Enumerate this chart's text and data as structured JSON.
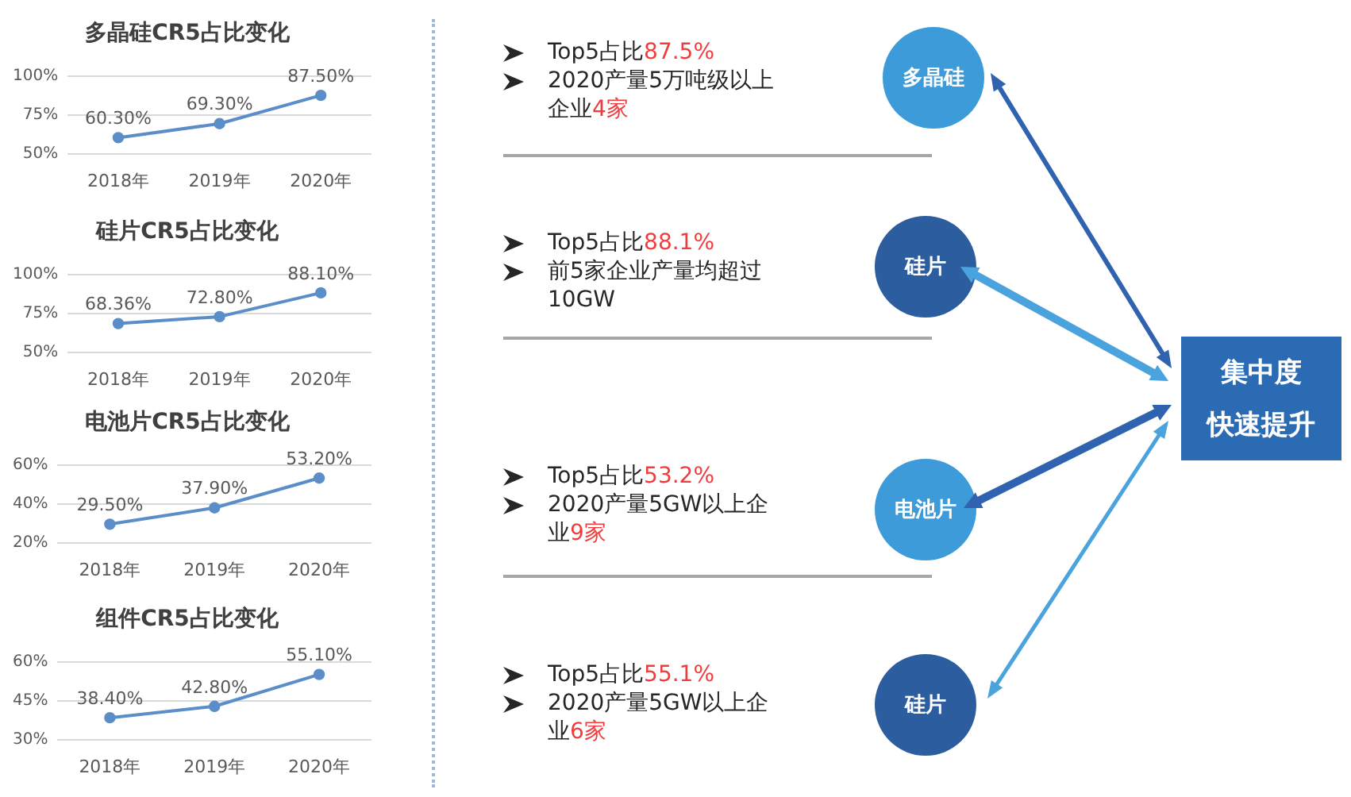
{
  "chart_data": [
    {
      "type": "line",
      "title": "多晶硅CR5占比变化",
      "categories": [
        "2018年",
        "2019年",
        "2020年"
      ],
      "values": [
        60.3,
        69.3,
        87.5
      ],
      "value_labels": [
        "60.30%",
        "69.30%",
        "87.50%"
      ],
      "color": "#5b8ec9",
      "ylim": [
        50,
        100
      ],
      "yticks": [
        {
          "value": 50,
          "label": "50%"
        },
        {
          "value": 75,
          "label": "75%"
        },
        {
          "value": 100,
          "label": "100%"
        }
      ],
      "grid": "y",
      "marker": "circle"
    },
    {
      "type": "line",
      "title": "硅片CR5占比变化",
      "categories": [
        "2018年",
        "2019年",
        "2020年"
      ],
      "values": [
        68.36,
        72.8,
        88.1
      ],
      "value_labels": [
        "68.36%",
        "72.80%",
        "88.10%"
      ],
      "color": "#5b8ec9",
      "ylim": [
        50,
        100
      ],
      "yticks": [
        {
          "value": 50,
          "label": "50%"
        },
        {
          "value": 75,
          "label": "75%"
        },
        {
          "value": 100,
          "label": "100%"
        }
      ],
      "grid": "y",
      "marker": "circle"
    },
    {
      "type": "line",
      "title": "电池片CR5占比变化",
      "categories": [
        "2018年",
        "2019年",
        "2020年"
      ],
      "values": [
        29.5,
        37.9,
        53.2
      ],
      "value_labels": [
        "29.50%",
        "37.90%",
        "53.20%"
      ],
      "color": "#5b8ec9",
      "ylim": [
        20,
        60
      ],
      "yticks": [
        {
          "value": 20,
          "label": "20%"
        },
        {
          "value": 40,
          "label": "40%"
        },
        {
          "value": 60,
          "label": "60%"
        }
      ],
      "grid": "y",
      "marker": "circle"
    },
    {
      "type": "line",
      "title": "组件CR5占比变化",
      "categories": [
        "2018年",
        "2019年",
        "2020年"
      ],
      "values": [
        38.4,
        42.8,
        55.1
      ],
      "value_labels": [
        "38.40%",
        "42.80%",
        "55.10%"
      ],
      "color": "#5b8ec9",
      "ylim": [
        30,
        60
      ],
      "yticks": [
        {
          "value": 30,
          "label": "30%"
        },
        {
          "value": 45,
          "label": "45%"
        },
        {
          "value": 60,
          "label": "60%"
        }
      ],
      "grid": "y",
      "marker": "circle"
    },
    {
      "type": "other",
      "annotations": [
        "Top5占比87.5%",
        "2020产量5万吨级以上企业4家",
        "Top5占比88.1%",
        "前5家企业产量均超过10GW",
        "Top5占比53.2%",
        "2020产量5GW以上企业9家",
        "Top5占比55.1%",
        "2020产量5GW以上企业6家",
        "多晶硅",
        "硅片",
        "电池片",
        "硅片",
        "集中度",
        "快速提升"
      ]
    }
  ]
}
